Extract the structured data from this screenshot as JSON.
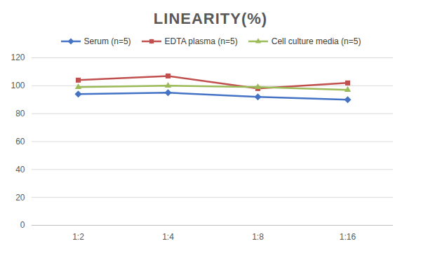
{
  "chart_data": {
    "type": "line",
    "title": "LINEARITY(%)",
    "categories": [
      "1:2",
      "1:4",
      "1:8",
      "1:16"
    ],
    "series": [
      {
        "name": "Serum (n=5)",
        "color": "#4472c4",
        "marker": "diamond",
        "values": [
          94,
          95,
          92,
          90
        ]
      },
      {
        "name": "EDTA plasma (n=5)",
        "color": "#c0504d",
        "marker": "square",
        "values": [
          104,
          107,
          98,
          102
        ]
      },
      {
        "name": "Cell culture media (n=5)",
        "color": "#9bbb59",
        "marker": "triangle",
        "values": [
          99,
          100,
          99,
          97
        ]
      }
    ],
    "ylim": [
      0,
      120
    ],
    "yticks": [
      0,
      20,
      40,
      60,
      80,
      100,
      120
    ],
    "grid": true,
    "legend": "top"
  }
}
